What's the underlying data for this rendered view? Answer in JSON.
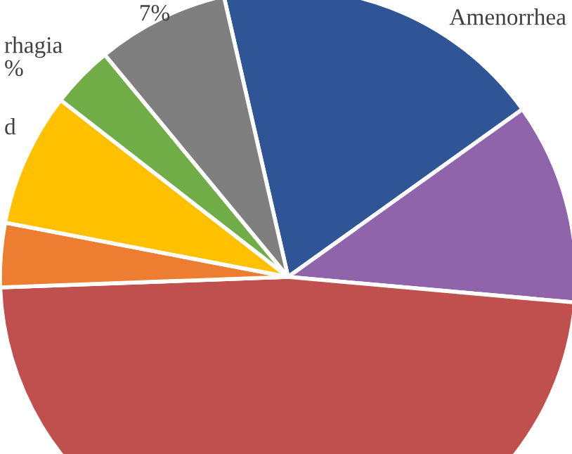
{
  "chart_data": {
    "type": "pie",
    "categories": [
      "Amenorrhea",
      null,
      null,
      null,
      "d",
      "rhagia",
      null
    ],
    "values": [
      18.7,
      11.3,
      48.0,
      3.6,
      7.5,
      3.5,
      7.4
    ],
    "colors": [
      "#2f5597",
      "#8f64aa",
      "#c0504d",
      "#ed7d31",
      "#ffc000",
      "#70ad47",
      "#7f7f7f"
    ],
    "value_labels": [
      null,
      null,
      null,
      null,
      null,
      "%",
      "7%"
    ]
  }
}
